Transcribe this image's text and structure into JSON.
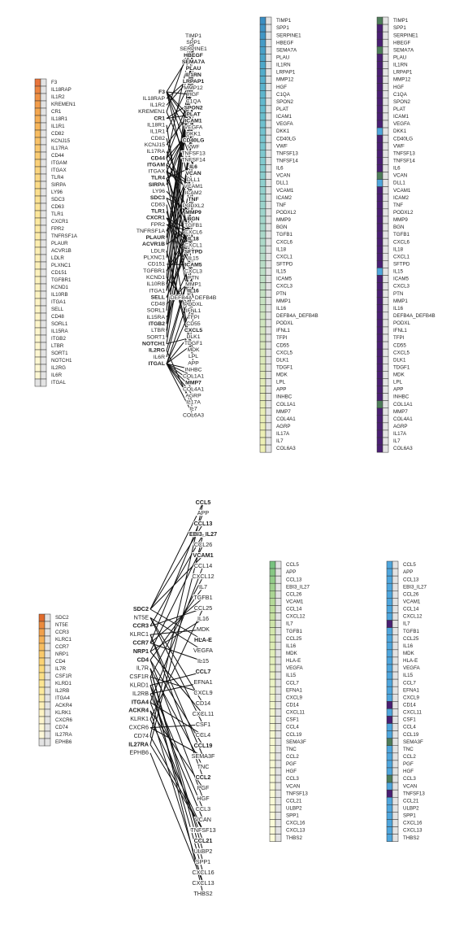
{
  "panels": [
    {
      "receptors": {
        "labels": [
          "F3",
          "IL18RAP",
          "IL1R2",
          "KREMEN1",
          "CR1",
          "IL18R1",
          "IL1R1",
          "CD82",
          "KCNJ15",
          "IL17RA",
          "CD44",
          "ITGAM",
          "ITGAX",
          "TLR4",
          "SIRPA",
          "LY96",
          "SDC3",
          "CD63",
          "TLR1",
          "CXCR1",
          "FPR2",
          "TNFRSF1A",
          "PLAUR",
          "ACVR1B",
          "LDLR",
          "PLXNC1",
          "CD151",
          "TGFBR1",
          "KCND1",
          "IL10RB",
          "ITGA1",
          "SELL",
          "CD48",
          "SORL1",
          "IL15RA",
          "ITGB2",
          "LTBR",
          "SORT1",
          "NOTCH1",
          "IL2RG",
          "IL6R",
          "ITGAL"
        ],
        "bold": [
          "F3",
          "CR1",
          "CD44",
          "ITGAM",
          "TLR4",
          "SIRPA",
          "SDC3",
          "TLR1",
          "CXCR1",
          "PLAUR",
          "ACVR1B",
          "SELL",
          "ITGB2",
          "NOTCH1",
          "IL2RG",
          "ITGAL"
        ],
        "colors": [
          "#e8743b",
          "#ec8440",
          "#ef9145",
          "#f19c4a",
          "#f3a64f",
          "#f5ae55",
          "#f6b55b",
          "#f7bc61",
          "#f8c167",
          "#f9c76d",
          "#f9cb73",
          "#fad078",
          "#fad47e",
          "#fad783",
          "#fbdb88",
          "#fbde8d",
          "#fbe192",
          "#fbe397",
          "#fce69b",
          "#fce89f",
          "#fce9a3",
          "#fcebaa",
          "#fcedaf",
          "#fceeb3",
          "#fcefb6",
          "#fcf0b9",
          "#fcf1bc",
          "#fcf2be",
          "#fcf2c0",
          "#fcf3c2",
          "#fdf3c4",
          "#fdf4c6",
          "#fdf4c8",
          "#fdf5ca",
          "#fdf5cc",
          "#fdf6ce",
          "#fdf6cf",
          "#fdf6d1",
          "#fdf7d2",
          "#fdf7d3",
          "#fdf7d4",
          "#e3e3e3"
        ]
      },
      "ligands": {
        "labels": [
          "TIMP1",
          "SPP1",
          "SERPINE1",
          "HBEGF",
          "SEMA7A",
          "PLAU",
          "IL1RN",
          "LRPAP1",
          "MMP12",
          "HGF",
          "C1QA",
          "SPON2",
          "PLAT",
          "ICAM1",
          "VEGFA",
          "DKK1",
          "CD40LG",
          "VWF",
          "TNFSF13",
          "TNFSF14",
          "IL6",
          "VCAN",
          "DLL1",
          "VCAM1",
          "ICAM2",
          "TNF",
          "PODXL2",
          "MMP9",
          "BGN",
          "TGFB1",
          "CXCL6",
          "IL18",
          "CXCL1",
          "SFTPD",
          "IL15",
          "ICAM5",
          "CXCL3",
          "PTN",
          "MMP1",
          "IL16",
          "DEFB4A_DEFB4B",
          "PODXL",
          "IFNL1",
          "TFPI",
          "CD55",
          "CXCL5",
          "DLK1",
          "TDGF1",
          "MDK",
          "LPL",
          "APP",
          "INHBC",
          "COL1A1",
          "MMP7",
          "COL4A1",
          "AGRP",
          "IL17A",
          "IL7",
          "COL6A3"
        ],
        "bold": [
          "HBEGF",
          "SEMA7A",
          "PLAU",
          "IL1RN",
          "LRPAP1",
          "SPON2",
          "PLAT",
          "ICAM1",
          "CD40LG",
          "IL6",
          "VCAN",
          "TNF",
          "MMP9",
          "BGN",
          "IL18",
          "SFTPD",
          "ICAM5",
          "IL16",
          "CXCL5",
          "MMP7"
        ],
        "colors": [
          "#3a8ec2",
          "#3f93c4",
          "#4297c5",
          "#459bc6",
          "#48a0c7",
          "#4ba4c8",
          "#4ea8c9",
          "#52acca",
          "#56afcb",
          "#5ab2cc",
          "#5eb5cc",
          "#62b8cd",
          "#66bbcd",
          "#6abecd",
          "#6ec0ce",
          "#72c2ce",
          "#76c4ce",
          "#7ac6ce",
          "#7ec8ce",
          "#82cace",
          "#86ccce",
          "#8acdcd",
          "#8ecfcd",
          "#92d0cc",
          "#96d2cc",
          "#9ad3cb",
          "#9ed4cb",
          "#a2d6ca",
          "#a6d7c9",
          "#aad8c9",
          "#add9c8",
          "#b1dac7",
          "#b4dbc6",
          "#b8ddc6",
          "#bbdec5",
          "#bedfc4",
          "#c1e0c3",
          "#c4e1c2",
          "#c7e2c1",
          "#cae3c0",
          "#cde4bf",
          "#cfe5be",
          "#d2e6bd",
          "#d4e6bc",
          "#d7e7bb",
          "#d9e8ba",
          "#dbe9b9",
          "#dde9b8",
          "#dfeab7",
          "#e1ebb7",
          "#e3ecb6",
          "#e5ecb6",
          "#e6edb5",
          "#e8eeb5",
          "#e9eeb4",
          "#ebefb4",
          "#ecefb4",
          "#edf0b4",
          "#eef0b4"
        ],
        "cats": [
          "g",
          "p",
          "p",
          "p",
          "g",
          "p",
          "p",
          "p",
          "p",
          "p",
          "p",
          "p",
          "p",
          "p",
          "p",
          "b",
          "p",
          "p",
          "p",
          "p",
          "p",
          "g",
          "b",
          "p",
          "p",
          "p",
          "p",
          "p",
          "p",
          "p",
          "p",
          "p",
          "p",
          "p",
          "b",
          "p",
          "p",
          "p",
          "p",
          "p",
          "p",
          "p",
          "p",
          "p",
          "p",
          "p",
          "p",
          "p",
          "p",
          "p",
          "p",
          "p",
          "g",
          "p",
          "p",
          "p",
          "p",
          "p",
          "p"
        ]
      },
      "edges": [
        [
          0,
          2
        ],
        [
          0,
          9
        ],
        [
          0,
          13
        ],
        [
          0,
          14
        ],
        [
          0,
          17
        ],
        [
          0,
          20
        ],
        [
          0,
          25
        ],
        [
          1,
          6
        ],
        [
          2,
          6
        ],
        [
          3,
          0
        ],
        [
          3,
          21
        ],
        [
          4,
          10
        ],
        [
          4,
          12
        ],
        [
          5,
          39
        ],
        [
          6,
          6
        ],
        [
          7,
          33
        ],
        [
          8,
          11
        ],
        [
          9,
          26
        ],
        [
          10,
          0
        ],
        [
          10,
          14
        ],
        [
          10,
          8
        ],
        [
          10,
          29
        ],
        [
          11,
          13
        ],
        [
          11,
          23
        ],
        [
          11,
          43
        ],
        [
          12,
          13
        ],
        [
          12,
          23
        ],
        [
          12,
          35
        ],
        [
          12,
          24
        ],
        [
          13,
          20
        ],
        [
          13,
          31
        ],
        [
          13,
          44
        ],
        [
          14,
          13
        ],
        [
          14,
          11
        ],
        [
          15,
          28
        ],
        [
          16,
          27
        ],
        [
          16,
          36
        ],
        [
          17,
          50
        ],
        [
          18,
          40
        ],
        [
          19,
          30
        ],
        [
          19,
          32
        ],
        [
          19,
          36
        ],
        [
          20,
          30
        ],
        [
          20,
          32
        ],
        [
          21,
          25
        ],
        [
          21,
          19
        ],
        [
          22,
          5
        ],
        [
          22,
          6
        ],
        [
          23,
          29
        ],
        [
          23,
          7
        ],
        [
          24,
          49
        ],
        [
          24,
          48
        ],
        [
          25,
          1
        ],
        [
          26,
          35
        ],
        [
          27,
          29
        ],
        [
          27,
          31
        ],
        [
          28,
          2
        ],
        [
          28,
          42
        ],
        [
          29,
          15
        ],
        [
          30,
          26
        ],
        [
          30,
          2
        ],
        [
          31,
          30
        ],
        [
          31,
          31
        ],
        [
          32,
          37
        ],
        [
          33,
          1
        ],
        [
          34,
          34
        ],
        [
          35,
          13
        ],
        [
          35,
          12
        ],
        [
          36,
          25
        ],
        [
          36,
          19
        ],
        [
          37,
          1
        ],
        [
          38,
          22
        ],
        [
          38,
          46
        ],
        [
          39,
          34
        ],
        [
          39,
          57
        ],
        [
          40,
          34
        ],
        [
          41,
          53
        ],
        [
          41,
          54
        ],
        [
          41,
          52
        ],
        [
          41,
          58
        ],
        [
          41,
          51
        ],
        [
          41,
          47
        ],
        [
          41,
          45
        ],
        [
          41,
          41
        ],
        [
          41,
          38
        ],
        [
          41,
          55
        ],
        [
          41,
          56
        ]
      ]
    },
    {
      "receptors": {
        "labels": [
          "SDC2",
          "NT5E",
          "CCR3",
          "KLRC1",
          "CCR7",
          "NRP1",
          "CD4",
          "IL7R",
          "CSF1R",
          "KLRD1",
          "IL2RB",
          "ITGA4",
          "ACKR4",
          "KLRK1",
          "CXCR6",
          "CD74",
          "IL27RA",
          "EPHB6"
        ],
        "bold": [
          "SDC2",
          "CCR3",
          "CCR7",
          "NRP1",
          "CD4",
          "ITGA4",
          "ACKR4",
          "IL27RA"
        ],
        "colors": [
          "#e06a2b",
          "#ea8a3d",
          "#f09f4a",
          "#f4b055",
          "#f7bd60",
          "#f9c96a",
          "#fad274",
          "#fbda7d",
          "#fbe087",
          "#fce591",
          "#fce99b",
          "#fcedaa",
          "#fdf0b8",
          "#fdf3c4",
          "#fdf5cd",
          "#fdf7d4",
          "#fdf8d9",
          "#e3e3e3"
        ]
      },
      "ligands": {
        "labels": [
          "CCL5",
          "APP",
          "CCL13",
          "EBI3_IL27",
          "CCL26",
          "VCAM1",
          "CCL14",
          "CXCL12",
          "IL7",
          "TGFB1",
          "CCL25",
          "IL16",
          "MDK",
          "HLA-E",
          "VEGFA",
          "IL15",
          "CCL7",
          "EFNA1",
          "CXCL9",
          "CD14",
          "CXCL11",
          "CSF1",
          "CCL4",
          "CCL19",
          "SEMA3F",
          "TNC",
          "CCL2",
          "PGF",
          "HGF",
          "CCL3",
          "VCAN",
          "TNFSF13",
          "CCL21",
          "ULBP2",
          "SPP1",
          "CXCL16",
          "CXCL13",
          "THBS2"
        ],
        "bold": [
          "CCL5",
          "CCL13",
          "EBI3_IL27",
          "VCAM1",
          "HLA-E",
          "CCL7",
          "CCL19",
          "CCL2",
          "CCL21"
        ],
        "colors": [
          "#78c27f",
          "#86c784",
          "#93cc89",
          "#9fd08e",
          "#aad593",
          "#b4d998",
          "#bedd9d",
          "#c6e0a2",
          "#cde4a7",
          "#d3e7ac",
          "#d8eab0",
          "#dcecb4",
          "#e0eeb8",
          "#e3f0bb",
          "#e6f1be",
          "#e9f2c1",
          "#ebf3c4",
          "#edf4c6",
          "#eff5c8",
          "#f0f6ca",
          "#f2f6cc",
          "#f3f7ce",
          "#f4f7cf",
          "#f5f8d0",
          "#f6f8d1",
          "#f6f9d2",
          "#f7f9d3",
          "#f7f9d4",
          "#f8f9d5",
          "#f8fad5",
          "#f9fad6",
          "#f9fad6",
          "#f9fad7",
          "#fafad7",
          "#fafad8",
          "#fafbd8",
          "#fafbd8",
          "#fbfbd9"
        ],
        "cats": [
          "b",
          "b",
          "b",
          "b",
          "b",
          "b",
          "b",
          "b",
          "p",
          "b",
          "b",
          "b",
          "b",
          "b",
          "b",
          "b",
          "b",
          "b",
          "b",
          "p",
          "b",
          "p",
          "b",
          "b",
          "g",
          "b",
          "b",
          "b",
          "b",
          "g",
          "b",
          "p",
          "b",
          "b",
          "b",
          "b",
          "b",
          "b"
        ]
      },
      "edges": [
        [
          0,
          0
        ],
        [
          0,
          13
        ],
        [
          0,
          5
        ],
        [
          0,
          2
        ],
        [
          1,
          19
        ],
        [
          1,
          21
        ],
        [
          1,
          14
        ],
        [
          2,
          3
        ],
        [
          2,
          10
        ],
        [
          3,
          26
        ],
        [
          3,
          24
        ],
        [
          3,
          12
        ],
        [
          4,
          9
        ],
        [
          4,
          15
        ],
        [
          4,
          1
        ],
        [
          5,
          4
        ],
        [
          5,
          20
        ],
        [
          5,
          11
        ],
        [
          6,
          28
        ],
        [
          6,
          8
        ],
        [
          6,
          23
        ],
        [
          7,
          34
        ],
        [
          7,
          25
        ],
        [
          7,
          33
        ],
        [
          8,
          37
        ],
        [
          8,
          7
        ],
        [
          8,
          18
        ],
        [
          9,
          16
        ],
        [
          9,
          29
        ],
        [
          9,
          35
        ],
        [
          10,
          30
        ],
        [
          10,
          17
        ],
        [
          11,
          22
        ],
        [
          11,
          32
        ],
        [
          11,
          6
        ],
        [
          12,
          36
        ],
        [
          12,
          27
        ],
        [
          13,
          31
        ],
        [
          13,
          10
        ],
        [
          14,
          21
        ],
        [
          14,
          24
        ],
        [
          15,
          0
        ],
        [
          15,
          31
        ],
        [
          16,
          3
        ],
        [
          16,
          31
        ],
        [
          17,
          36
        ]
      ]
    }
  ]
}
